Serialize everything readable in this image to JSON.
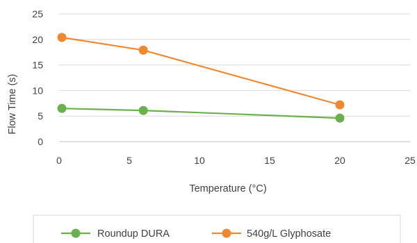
{
  "chart_data": {
    "type": "scatter",
    "xlabel": "Temperature (°C)",
    "ylabel": "Flow Time (s)",
    "xlim": [
      0,
      25
    ],
    "ylim": [
      0,
      25
    ],
    "x_ticks": [
      "0",
      "5",
      "10",
      "15",
      "20",
      "25"
    ],
    "y_ticks": [
      "0",
      "5",
      "10",
      "15",
      "20",
      "25"
    ],
    "grid": "horizontal",
    "legend_position": "bottom",
    "series": [
      {
        "name": "Roundup DURA",
        "color": "#6ab04c",
        "x": [
          0.2,
          6,
          20
        ],
        "y": [
          6.5,
          6.1,
          4.6
        ]
      },
      {
        "name": "540g/L Glyphosate",
        "color": "#f0892e",
        "x": [
          0.2,
          6,
          20
        ],
        "y": [
          20.4,
          17.9,
          7.2
        ]
      }
    ]
  }
}
